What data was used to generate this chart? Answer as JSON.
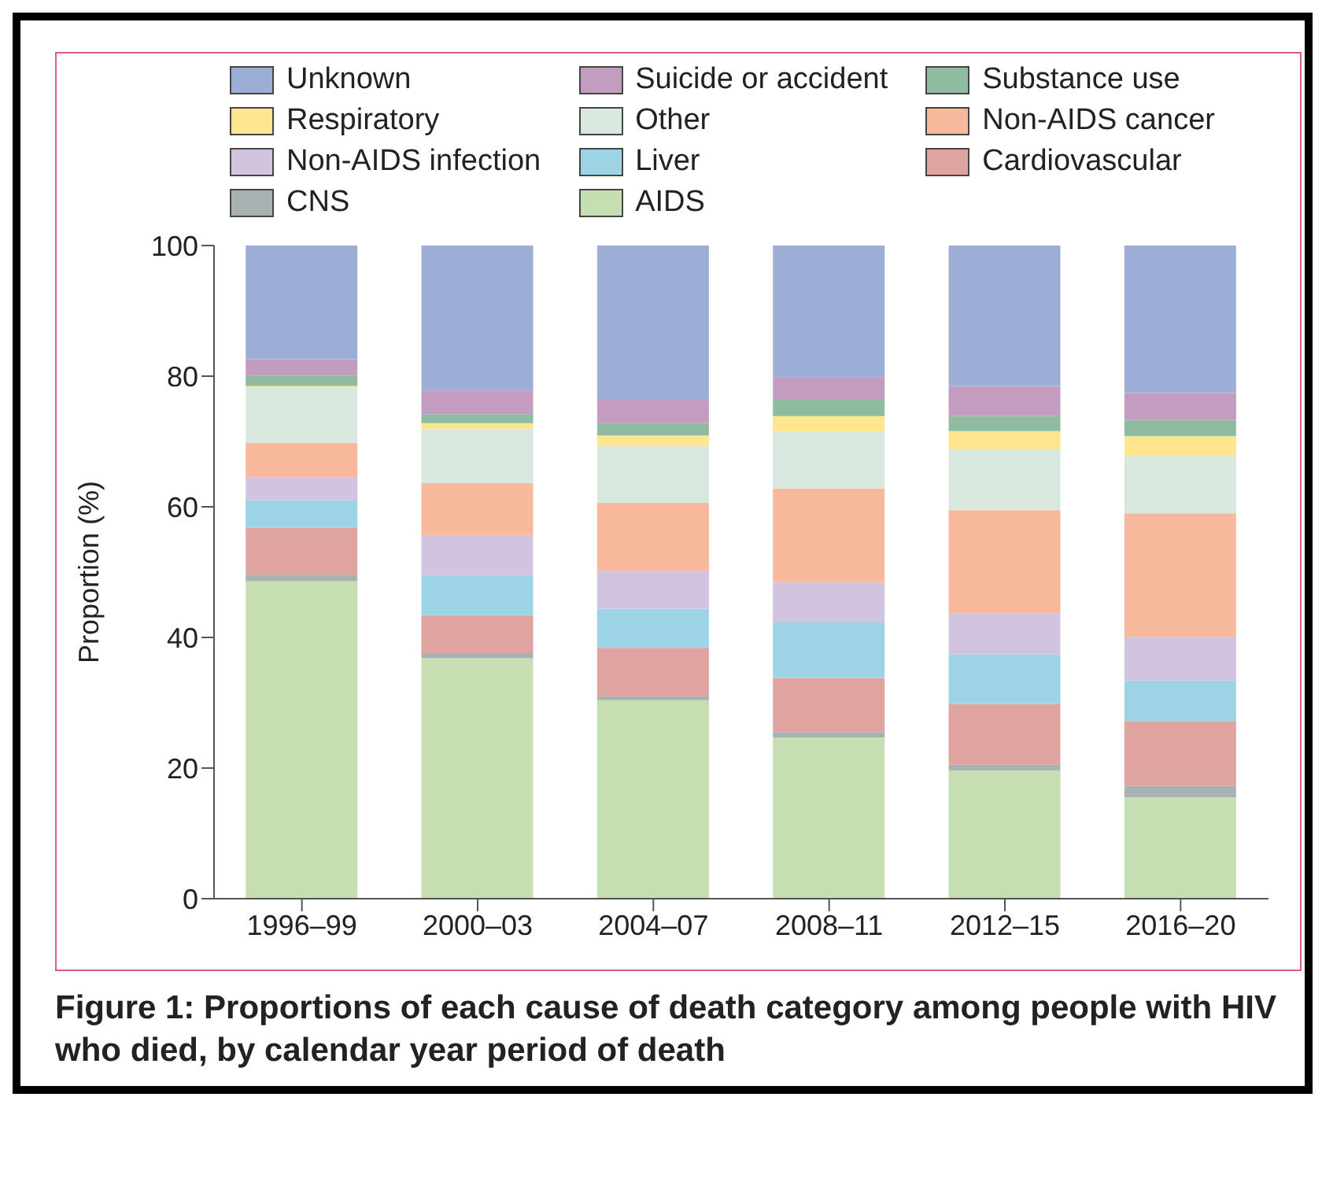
{
  "chart_data": {
    "type": "bar",
    "stacked": true,
    "title": "Figure 1: Proportions of each cause of death category among people with HIV who died, by calendar year period of death",
    "ylabel": "Proportion (%)",
    "categories": [
      "1996–99",
      "2000–03",
      "2004–07",
      "2008–11",
      "2012–15",
      "2016–20"
    ],
    "ylim": [
      0,
      100
    ],
    "yticks": [
      0,
      20,
      40,
      60,
      80,
      100
    ],
    "legend": "top",
    "series": [
      {
        "name": "AIDS",
        "color": "#c5dfb3",
        "values": [
          48.6,
          36.8,
          30.4,
          24.7,
          19.6,
          15.5
        ]
      },
      {
        "name": "CNS",
        "color": "#a9b2b3",
        "values": [
          1.0,
          0.8,
          0.6,
          0.8,
          0.9,
          1.8
        ]
      },
      {
        "name": "Cardiovascular",
        "color": "#dfa3a0",
        "values": [
          7.2,
          5.8,
          7.4,
          8.3,
          9.3,
          9.9
        ]
      },
      {
        "name": "Liver",
        "color": "#9cd4e6",
        "values": [
          4.2,
          6.1,
          6.0,
          8.5,
          7.6,
          6.2
        ]
      },
      {
        "name": "Non-AIDS infection",
        "color": "#d2c3df",
        "values": [
          3.5,
          6.2,
          5.8,
          6.2,
          6.3,
          6.7
        ]
      },
      {
        "name": "Non-AIDS cancer",
        "color": "#f7b89c",
        "values": [
          5.3,
          7.9,
          10.4,
          14.3,
          15.8,
          18.9
        ]
      },
      {
        "name": "Other",
        "color": "#d9e8df",
        "values": [
          8.5,
          8.3,
          8.7,
          8.7,
          9.3,
          8.8
        ]
      },
      {
        "name": "Respiratory",
        "color": "#fde68f",
        "values": [
          0.2,
          0.9,
          1.6,
          2.4,
          2.8,
          3.0
        ]
      },
      {
        "name": "Substance use",
        "color": "#8fbca0",
        "values": [
          1.6,
          1.4,
          1.9,
          2.6,
          2.3,
          2.5
        ]
      },
      {
        "name": "Suicide or accident",
        "color": "#c39dc0",
        "values": [
          2.5,
          3.6,
          3.7,
          3.3,
          4.6,
          4.1
        ]
      },
      {
        "name": "Unknown",
        "color": "#9daed6",
        "values": [
          17.4,
          22.2,
          23.5,
          20.2,
          21.5,
          22.6
        ]
      }
    ]
  }
}
